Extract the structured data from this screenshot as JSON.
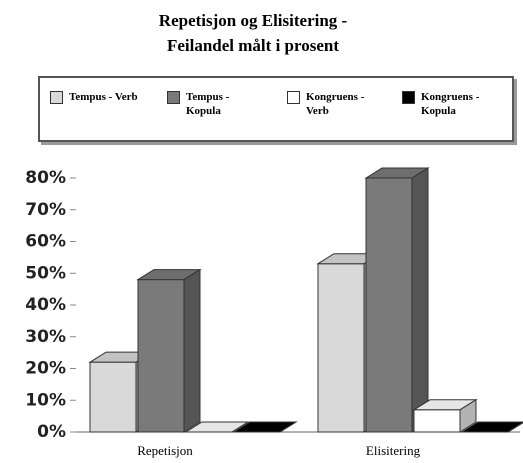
{
  "chart_data": {
    "type": "bar3d",
    "title": "Repetisjon og Elisitering - Feilandel målt i prosent",
    "categories": [
      "Repetisjon",
      "Elisitering"
    ],
    "series": [
      {
        "name": "Tempus - Verb",
        "color": "#d9d9d9",
        "values": [
          22,
          53
        ]
      },
      {
        "name": "Tempus - Kopula",
        "color": "#7a7a7a",
        "values": [
          48,
          80
        ]
      },
      {
        "name": "Kongruens - Verb",
        "color": "#ffffff",
        "values": [
          0,
          7
        ]
      },
      {
        "name": "Kongruens - Kopula",
        "color": "#000000",
        "values": [
          0,
          0
        ]
      }
    ],
    "ylim": [
      0,
      80
    ],
    "yticks": [
      {
        "value": 0,
        "label": "0%"
      },
      {
        "value": 10,
        "label": "10%"
      },
      {
        "value": 20,
        "label": "20%"
      },
      {
        "value": 30,
        "label": "30%"
      },
      {
        "value": 40,
        "label": "40%"
      },
      {
        "value": 50,
        "label": "50%"
      },
      {
        "value": 60,
        "label": "60%"
      },
      {
        "value": 70,
        "label": "70%"
      },
      {
        "value": 80,
        "label": "80%"
      }
    ]
  }
}
